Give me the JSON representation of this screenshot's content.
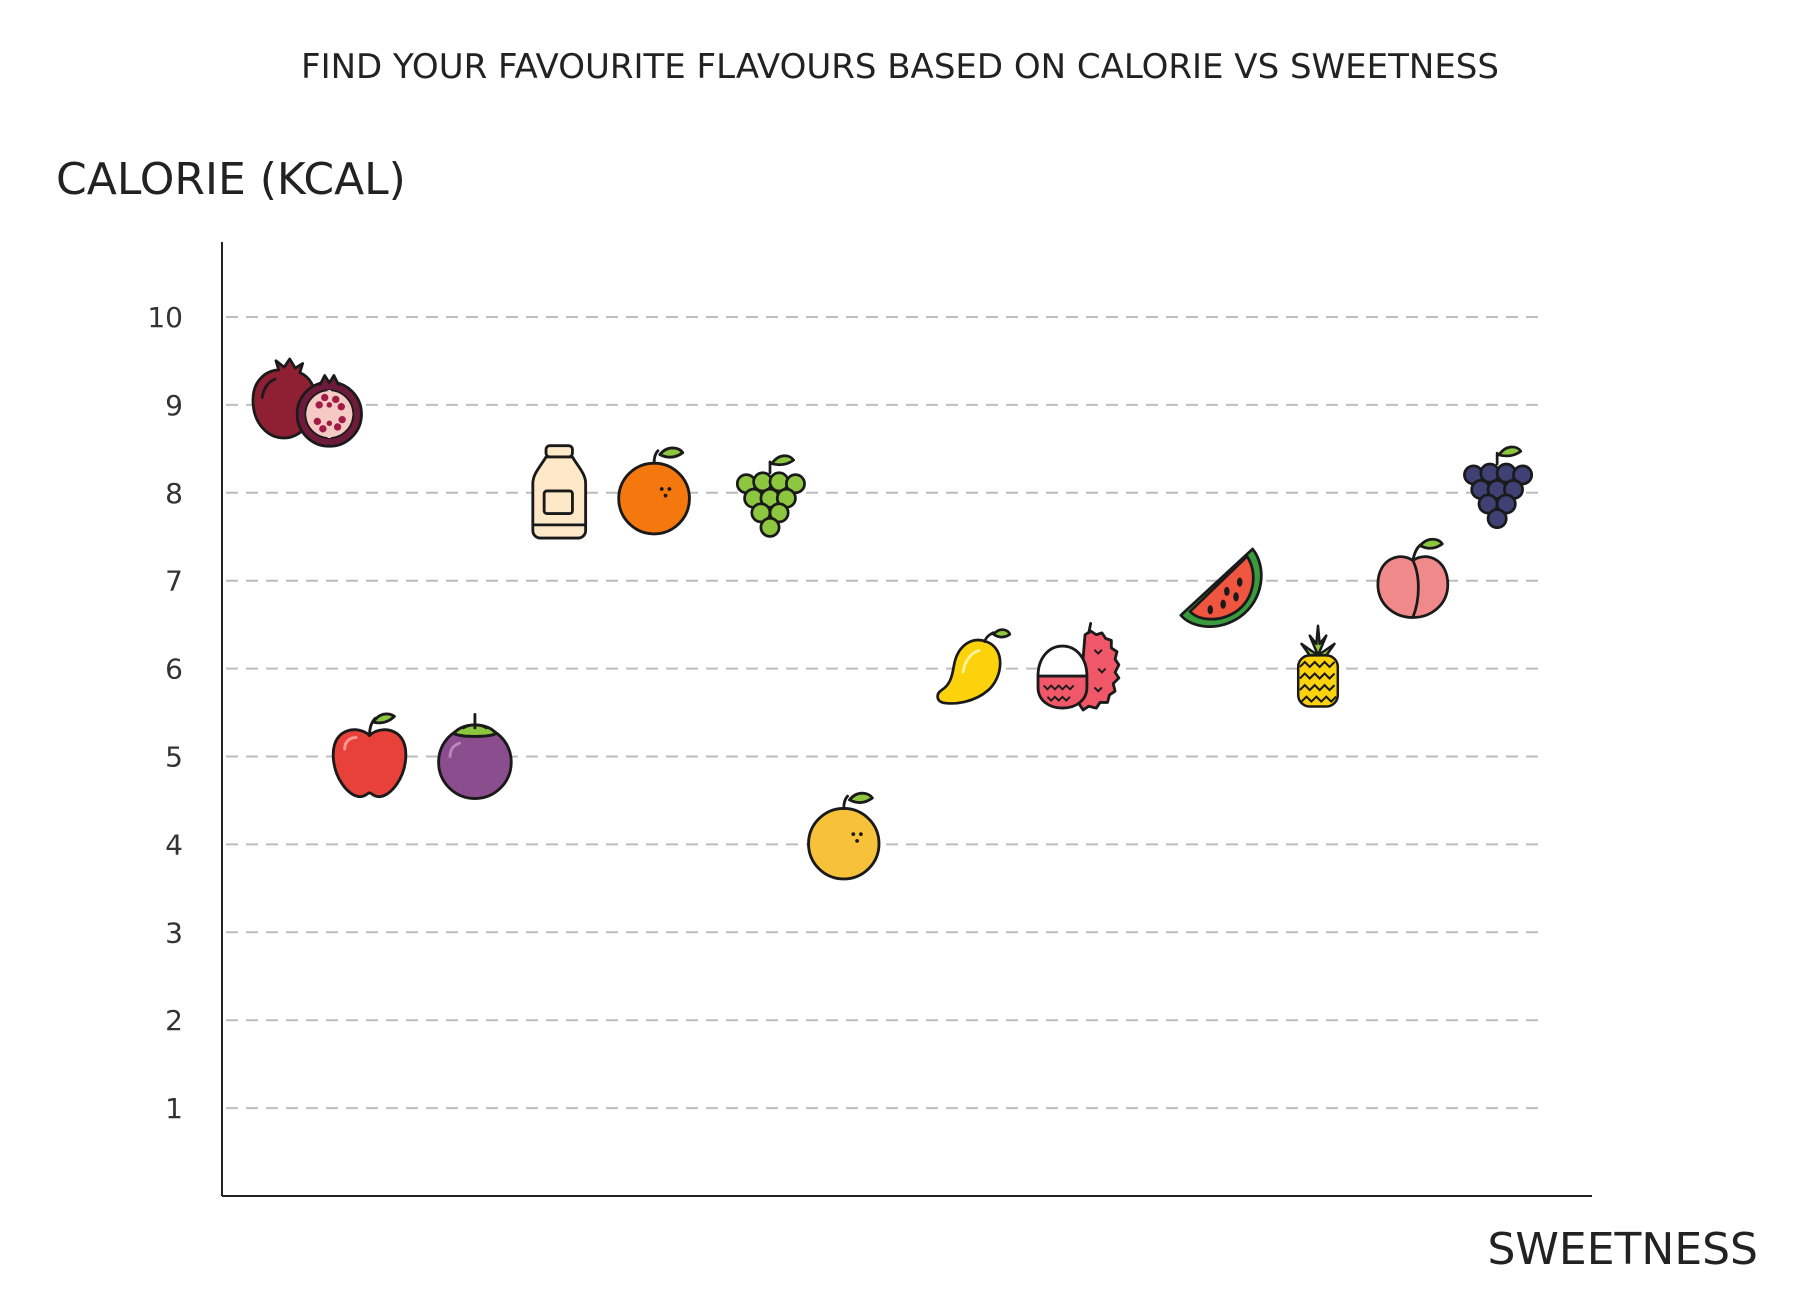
{
  "chart_data": {
    "type": "scatter",
    "title": "FIND YOUR FAVOURITE FLAVOURS BASED ON CALORIE VS SWEETNESS",
    "xlabel": "SWEETNESS",
    "ylabel": "CALORIE (KCAL)",
    "ylim": [
      0,
      10.8
    ],
    "xlim": [
      0,
      13
    ],
    "y_ticks": [
      "1",
      "2",
      "3",
      "4",
      "5",
      "6",
      "7",
      "8",
      "9",
      "10"
    ],
    "grid": true,
    "points": [
      {
        "icon": "pomegranate-icon",
        "x": 0.8,
        "y": 9.0,
        "color": "#8f1f33"
      },
      {
        "icon": "apple-icon",
        "x": 1.4,
        "y": 5.0,
        "color": "#e8413a"
      },
      {
        "icon": "mangosteen-icon",
        "x": 2.4,
        "y": 5.0,
        "color": "#8a4e8e"
      },
      {
        "icon": "yogurt-drink-icon",
        "x": 3.2,
        "y": 8.0,
        "color": "#fde9c8"
      },
      {
        "icon": "orange-icon",
        "x": 4.1,
        "y": 8.0,
        "color": "#f5780f"
      },
      {
        "icon": "green-grapes-icon",
        "x": 5.2,
        "y": 8.0,
        "color": "#8dc63f"
      },
      {
        "icon": "citrus-icon",
        "x": 5.9,
        "y": 4.1,
        "color": "#f7c23a"
      },
      {
        "icon": "mango-icon",
        "x": 7.1,
        "y": 6.0,
        "color": "#fcd20c"
      },
      {
        "icon": "lychee-icon",
        "x": 8.1,
        "y": 6.0,
        "color": "#f0586a"
      },
      {
        "icon": "watermelon-icon",
        "x": 9.5,
        "y": 6.9,
        "color": "#f0553f"
      },
      {
        "icon": "pineapple-icon",
        "x": 10.4,
        "y": 6.0,
        "color": "#fcd20c"
      },
      {
        "icon": "peach-icon",
        "x": 11.3,
        "y": 7.0,
        "color": "#f08a8a"
      },
      {
        "icon": "purple-grapes-icon",
        "x": 12.1,
        "y": 8.1,
        "color": "#3f4174"
      }
    ]
  }
}
